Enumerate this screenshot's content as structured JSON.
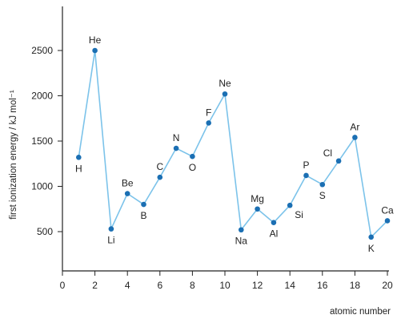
{
  "chart_data": {
    "type": "line",
    "title": "",
    "xlabel": "atomic number",
    "ylabel": "first ionization energy / kJ mol⁻¹",
    "xlim": [
      0,
      20
    ],
    "ylim": [
      0,
      2600
    ],
    "xticks": [
      0,
      2,
      4,
      6,
      8,
      10,
      12,
      14,
      16,
      18,
      20
    ],
    "yticks": [
      500,
      1000,
      1500,
      2000,
      2500
    ],
    "grid": false,
    "line_color": "#7cc3ea",
    "marker_color": "#1b6fb3",
    "series": [
      {
        "x": [
          1,
          2,
          3,
          4,
          5,
          6,
          7,
          8,
          9,
          10,
          11,
          12,
          13,
          14,
          15,
          16,
          17,
          18,
          19,
          20
        ],
        "labels": [
          "H",
          "He",
          "Li",
          "Be",
          "B",
          "C",
          "N",
          "O",
          "F",
          "Ne",
          "Na",
          "Mg",
          "Al",
          "Si",
          "P",
          "S",
          "Cl",
          "Ar",
          "K",
          "Ca"
        ],
        "values": [
          1320,
          2500,
          530,
          920,
          800,
          1100,
          1420,
          1330,
          1700,
          2020,
          520,
          750,
          600,
          790,
          1120,
          1020,
          1280,
          1540,
          440,
          620
        ],
        "label_positions": [
          "below",
          "above",
          "below",
          "above",
          "below",
          "above",
          "above",
          "below",
          "above",
          "above",
          "below",
          "above",
          "below",
          "below-right",
          "above",
          "below",
          "above-left",
          "above",
          "below",
          "above"
        ]
      }
    ]
  }
}
